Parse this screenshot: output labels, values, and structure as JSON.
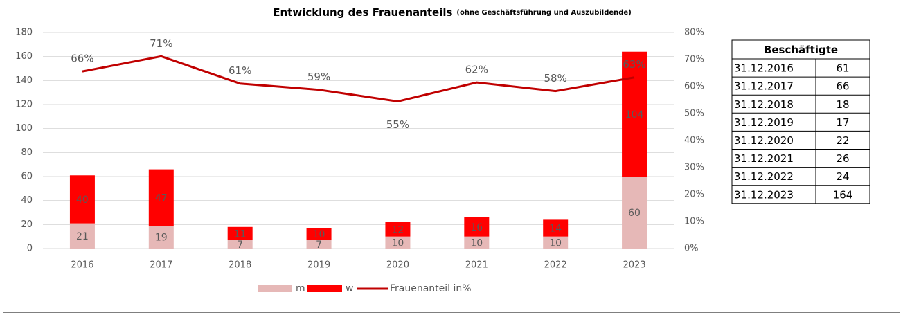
{
  "chart_data": {
    "type": "bar",
    "stacked": true,
    "title": "Entwicklung des Frauenanteils",
    "subtitle": "(ohne Geschäftsführung und Auszubildende)",
    "categories": [
      "2016",
      "2017",
      "2018",
      "2019",
      "2020",
      "2021",
      "2022",
      "2023"
    ],
    "series": [
      {
        "name": "m",
        "color": "#e6b8b7",
        "values": [
          21,
          19,
          7,
          7,
          10,
          10,
          10,
          60
        ]
      },
      {
        "name": "w",
        "color": "#ff0000",
        "values": [
          40,
          47,
          11,
          10,
          12,
          16,
          14,
          104
        ]
      },
      {
        "name": "Frauenanteil in%",
        "type": "line",
        "axis": "y2",
        "color": "#c00000",
        "values": [
          65.6,
          71.2,
          61.1,
          58.8,
          54.5,
          61.5,
          58.3,
          63.4
        ],
        "value_labels": [
          "66%",
          "71%",
          "61%",
          "59%",
          "55%",
          "62%",
          "58%",
          "63%"
        ]
      }
    ],
    "ylim": [
      0,
      180
    ],
    "yticks": [
      0,
      20,
      40,
      60,
      80,
      100,
      120,
      140,
      160,
      180
    ],
    "y2lim": [
      0,
      80
    ],
    "y2ticks": [
      {
        "value": 0,
        "label": "0%"
      },
      {
        "value": 10,
        "label": "10%"
      },
      {
        "value": 20,
        "label": "20%"
      },
      {
        "value": 30,
        "label": "30%"
      },
      {
        "value": 40,
        "label": "40%"
      },
      {
        "value": 50,
        "label": "50%"
      },
      {
        "value": 60,
        "label": "60%"
      },
      {
        "value": 70,
        "label": "70%"
      },
      {
        "value": 80,
        "label": "80%"
      }
    ],
    "grid": true,
    "legend": "bottom"
  },
  "table": {
    "title": "Beschäftigte",
    "rows": [
      [
        "31.12.2016",
        61
      ],
      [
        "31.12.2017",
        66
      ],
      [
        "31.12.2018",
        18
      ],
      [
        "31.12.2019",
        17
      ],
      [
        "31.12.2020",
        22
      ],
      [
        "31.12.2021",
        26
      ],
      [
        "31.12.2022",
        24
      ],
      [
        "31.12.2023",
        164
      ]
    ]
  }
}
